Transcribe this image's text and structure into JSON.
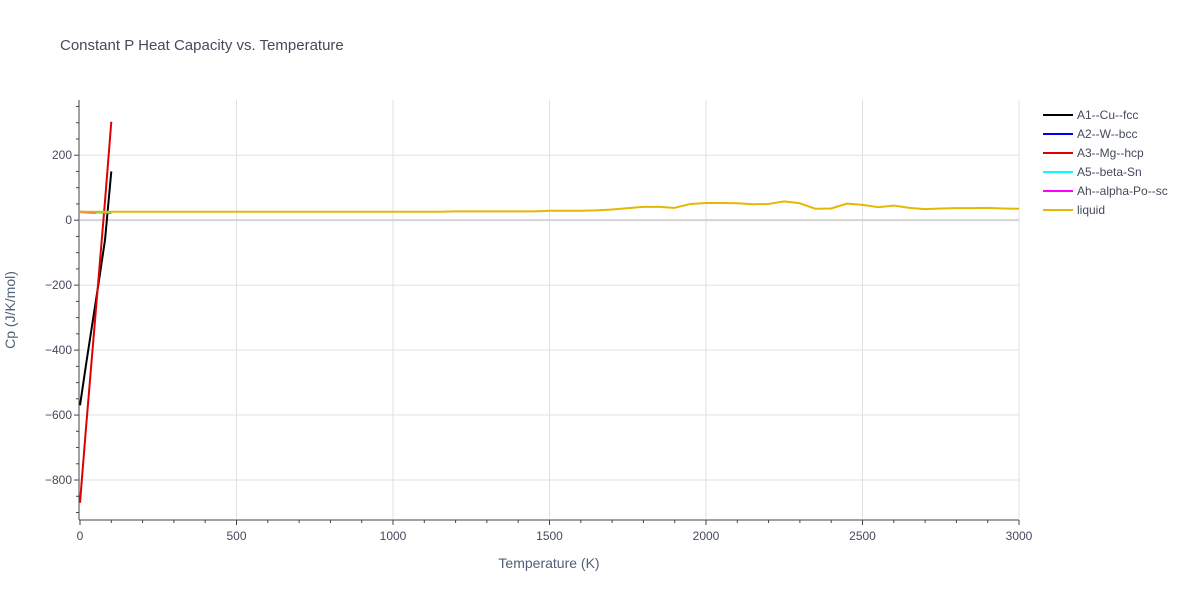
{
  "chart_data": {
    "type": "line",
    "title": "Constant P Heat Capacity vs. Temperature",
    "xlabel": "Temperature (K)",
    "ylabel": "Cp (J/K/mol)",
    "xlim": [
      0,
      3000
    ],
    "ylim": [
      -920,
      370
    ],
    "x_ticks": [
      0,
      500,
      1000,
      1500,
      2000,
      2500,
      3000
    ],
    "y_ticks": [
      -800,
      -600,
      -400,
      -200,
      0,
      200
    ],
    "x_tick_labels": [
      "0",
      "500",
      "1000",
      "1500",
      "2000",
      "2500",
      "3000"
    ],
    "y_tick_labels": [
      "−800",
      "−600",
      "−400",
      "−200",
      "0",
      "200"
    ],
    "grid": true,
    "legend_position": "right",
    "series": [
      {
        "name": "A1--Cu--fcc",
        "color": "#000000",
        "x": [
          0,
          20,
          40,
          60,
          80,
          100
        ],
        "y": [
          -570,
          -440,
          -315,
          -190,
          -60,
          150
        ]
      },
      {
        "name": "A2--W--bcc",
        "color": "#0000ff",
        "x": [
          0,
          50,
          100
        ],
        "y": [
          26,
          24,
          22
        ]
      },
      {
        "name": "A3--Mg--hcp",
        "color": "#e00000",
        "x": [
          0,
          20,
          40,
          60,
          80,
          100
        ],
        "y": [
          -870,
          -630,
          -400,
          -170,
          60,
          303
        ]
      },
      {
        "name": "A5--beta-Sn",
        "color": "#00ffff",
        "x": [
          0,
          50,
          100
        ],
        "y": [
          25,
          24,
          23
        ]
      },
      {
        "name": "Ah--alpha-Po--sc",
        "color": "#ff00ff",
        "x": [
          0,
          25,
          50
        ],
        "y": [
          25,
          24,
          23
        ]
      },
      {
        "name": "liquid",
        "color": "#e6b800",
        "x": [
          0,
          100,
          200,
          400,
          600,
          800,
          1000,
          1150,
          1200,
          1300,
          1350,
          1400,
          1450,
          1500,
          1550,
          1600,
          1650,
          1700,
          1750,
          1800,
          1850,
          1900,
          1950,
          2000,
          2050,
          2100,
          2150,
          2200,
          2250,
          2300,
          2350,
          2400,
          2450,
          2500,
          2550,
          2600,
          2650,
          2700,
          2750,
          2800,
          2850,
          2900,
          2950,
          3000
        ],
        "y": [
          26,
          26,
          26,
          26,
          26,
          26,
          26,
          26,
          27,
          27,
          27,
          27,
          27,
          29,
          29,
          29,
          30,
          33,
          37,
          41,
          41,
          38,
          50,
          53,
          53,
          52,
          49,
          50,
          58,
          52,
          35,
          36,
          51,
          47,
          40,
          45,
          38,
          34,
          36,
          37,
          37,
          38,
          36,
          35
        ]
      }
    ]
  }
}
